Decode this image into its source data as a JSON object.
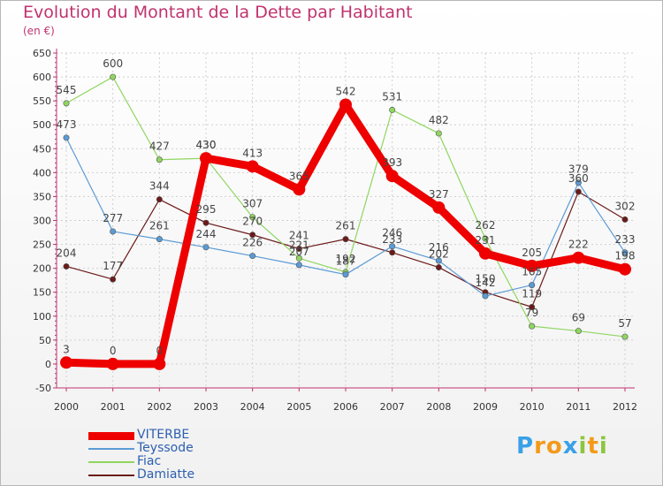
{
  "title": "Evolution du Montant de la Dette par Habitant",
  "subtitle": "(en €)",
  "colors": {
    "title": "#c0336e",
    "axis": "#c0336e",
    "grid": "#d0d0d0"
  },
  "chart_data": {
    "type": "line",
    "x": [
      "2000",
      "2001",
      "2002",
      "2003",
      "2004",
      "2005",
      "2006",
      "2007",
      "2008",
      "2009",
      "2010",
      "2011",
      "2012"
    ],
    "ylim": [
      -50,
      650
    ],
    "yticks": [
      -50,
      0,
      50,
      100,
      150,
      200,
      250,
      300,
      350,
      400,
      450,
      500,
      550,
      600,
      650
    ],
    "grid": true,
    "legend_position": "bottom-left",
    "series": [
      {
        "name": "VITERBE",
        "color": "#ee0000",
        "values": [
          3,
          0,
          0,
          430,
          413,
          365,
          542,
          393,
          327,
          231,
          205,
          222,
          198
        ]
      },
      {
        "name": "Teyssode",
        "color": "#5b9bd5",
        "values": [
          473,
          277,
          261,
          244,
          226,
          207,
          187,
          246,
          216,
          142,
          165,
          379,
          233
        ]
      },
      {
        "name": "Fiac",
        "color": "#8fd660",
        "values": [
          545,
          600,
          427,
          430,
          307,
          221,
          192,
          531,
          482,
          262,
          79,
          69,
          57
        ]
      },
      {
        "name": "Damiatte",
        "color": "#6b1a1a",
        "values": [
          204,
          177,
          344,
          295,
          270,
          241,
          261,
          233,
          202,
          150,
          119,
          360,
          302
        ]
      }
    ],
    "point_labels": [
      [
        "3",
        "0",
        "0",
        "430",
        "413",
        "365",
        "542",
        "393",
        "327",
        "231",
        "205",
        "222",
        "198"
      ],
      [
        "473",
        "277",
        "261",
        "244",
        "226",
        "207",
        "187",
        "246",
        "216",
        "142",
        "165",
        "379",
        "233"
      ],
      [
        "545",
        "600",
        "427",
        "430",
        "307",
        "221",
        "192",
        "531",
        "482",
        "262",
        "79",
        "69",
        "57"
      ],
      [
        "204",
        "177",
        "344",
        "295",
        "270",
        "241",
        "261",
        "233",
        "202",
        "150",
        "119",
        "360",
        "302"
      ]
    ]
  },
  "logo": {
    "letters": [
      "P",
      "r",
      "o",
      "x",
      "i",
      "t",
      "i"
    ],
    "colors": [
      "#3aa0e8",
      "#f29a1a",
      "#f29a1a",
      "#3aa0e8",
      "#8cc63e",
      "#f29a1a",
      "#8cc63e"
    ]
  }
}
